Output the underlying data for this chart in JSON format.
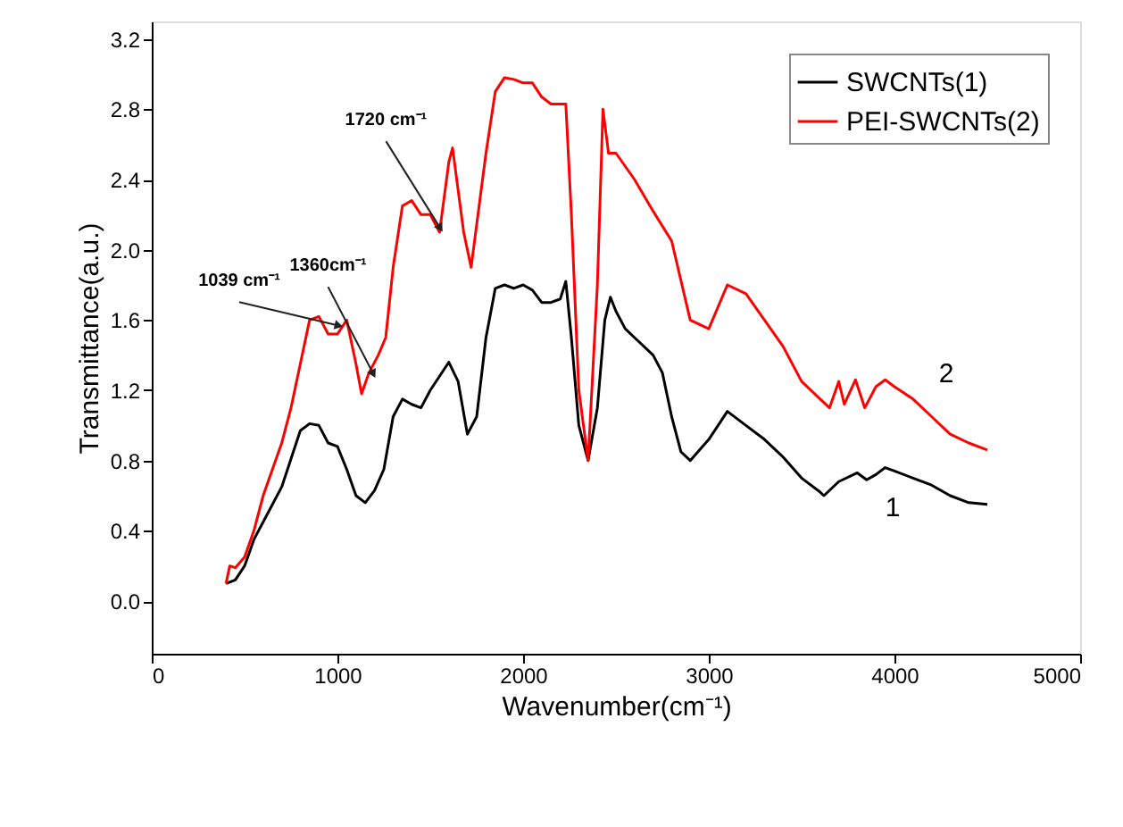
{
  "chart_data": {
    "type": "line",
    "xlabel": "Wavenumber(cm⁻¹)",
    "ylabel": "Transmittance(a.u.)",
    "xlim": [
      0,
      5000
    ],
    "xticks": [
      0,
      1000,
      2000,
      3000,
      4000,
      5000
    ],
    "ylim": [
      -0.3,
      3.3
    ],
    "yticks": [
      {
        "value": 0,
        "label": "0.0"
      },
      0.4,
      0.8,
      1.2,
      1.6,
      {
        "value": 2,
        "label": "2.0"
      },
      2.4,
      2.8,
      3.2
    ],
    "grid": false,
    "legend": "top right",
    "marker": "none",
    "line_style": "solid",
    "series": [
      {
        "name": "SWCNTs(1)",
        "color": "#000000",
        "x": [
          400,
          450,
          500,
          550,
          600,
          700,
          800,
          850,
          900,
          950,
          1000,
          1050,
          1100,
          1150,
          1200,
          1250,
          1300,
          1350,
          1400,
          1450,
          1500,
          1600,
          1650,
          1700,
          1750,
          1800,
          1850,
          1900,
          1950,
          2000,
          2050,
          2100,
          2150,
          2200,
          2230,
          2260,
          2300,
          2350,
          2400,
          2440,
          2470,
          2500,
          2550,
          2600,
          2700,
          2750,
          2800,
          2850,
          2900,
          3000,
          3100,
          3200,
          3300,
          3400,
          3500,
          3600,
          3620,
          3700,
          3800,
          3850,
          3900,
          3950,
          4000,
          4100,
          4200,
          4300,
          4400,
          4500
        ],
        "values": [
          0.1,
          0.12,
          0.2,
          0.35,
          0.45,
          0.65,
          0.97,
          1.01,
          1.0,
          0.9,
          0.88,
          0.75,
          0.6,
          0.56,
          0.63,
          0.75,
          1.05,
          1.15,
          1.12,
          1.1,
          1.2,
          1.36,
          1.25,
          0.95,
          1.05,
          1.5,
          1.78,
          1.8,
          1.78,
          1.8,
          1.77,
          1.7,
          1.7,
          1.72,
          1.82,
          1.5,
          1.0,
          0.8,
          1.1,
          1.6,
          1.73,
          1.65,
          1.55,
          1.5,
          1.4,
          1.3,
          1.05,
          0.85,
          0.8,
          0.92,
          1.08,
          1.0,
          0.92,
          0.82,
          0.7,
          0.62,
          0.6,
          0.68,
          0.73,
          0.69,
          0.72,
          0.76,
          0.74,
          0.7,
          0.66,
          0.6,
          0.56,
          0.55
        ]
      },
      {
        "name": "PEI-SWCNTs(2)",
        "color": "#ff0000",
        "x": [
          400,
          420,
          450,
          500,
          550,
          600,
          700,
          750,
          800,
          850,
          900,
          950,
          1000,
          1050,
          1100,
          1130,
          1170,
          1220,
          1260,
          1300,
          1350,
          1400,
          1450,
          1500,
          1550,
          1600,
          1620,
          1680,
          1720,
          1800,
          1850,
          1900,
          1950,
          2000,
          2050,
          2100,
          2150,
          2200,
          2230,
          2260,
          2300,
          2350,
          2400,
          2430,
          2460,
          2500,
          2600,
          2700,
          2800,
          2900,
          3000,
          3100,
          3200,
          3300,
          3400,
          3500,
          3600,
          3650,
          3700,
          3730,
          3790,
          3840,
          3900,
          3950,
          4000,
          4100,
          4200,
          4300,
          4400,
          4500
        ],
        "values": [
          0.1,
          0.2,
          0.19,
          0.25,
          0.4,
          0.6,
          0.9,
          1.1,
          1.35,
          1.6,
          1.62,
          1.52,
          1.52,
          1.6,
          1.35,
          1.18,
          1.3,
          1.4,
          1.5,
          1.9,
          2.25,
          2.28,
          2.2,
          2.2,
          2.1,
          2.5,
          2.58,
          2.1,
          1.9,
          2.55,
          2.9,
          2.98,
          2.97,
          2.95,
          2.95,
          2.87,
          2.83,
          2.83,
          2.83,
          2.2,
          1.2,
          0.8,
          1.8,
          2.8,
          2.55,
          2.55,
          2.4,
          2.22,
          2.05,
          1.6,
          1.55,
          1.8,
          1.75,
          1.6,
          1.45,
          1.25,
          1.15,
          1.1,
          1.25,
          1.12,
          1.26,
          1.1,
          1.22,
          1.26,
          1.22,
          1.15,
          1.05,
          0.95,
          0.9,
          0.86
        ]
      }
    ],
    "annotations": [
      {
        "text": "1039 cm⁻¹",
        "x": 1000,
        "y": 1.57
      },
      {
        "text": "1360cm⁻¹",
        "x": 1190,
        "y": 1.3
      },
      {
        "text": "1720 cm⁻¹",
        "x": 1550,
        "y": 2.13
      },
      "1",
      "2"
    ]
  }
}
